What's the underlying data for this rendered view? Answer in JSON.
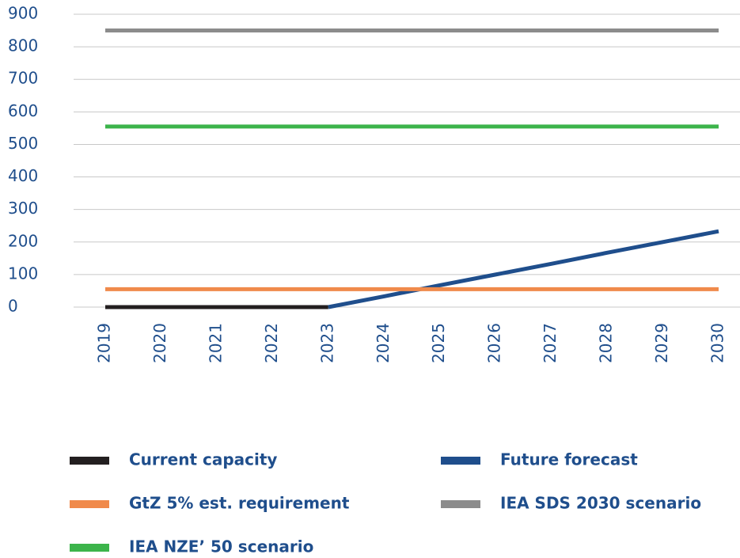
{
  "chart_data": {
    "type": "line",
    "categories": [
      "2019",
      "2020",
      "2021",
      "2022",
      "2023",
      "2024",
      "2025",
      "2026",
      "2027",
      "2028",
      "2029",
      "2030"
    ],
    "series": [
      {
        "name": "Current capacity",
        "color": "#231f20",
        "values": [
          0,
          0,
          0,
          0,
          0,
          null,
          null,
          null,
          null,
          null,
          null,
          null
        ]
      },
      {
        "name": "Future forecast",
        "color": "#1f4e8c",
        "values": [
          null,
          null,
          null,
          null,
          0,
          33,
          67,
          100,
          133,
          167,
          200,
          233
        ]
      },
      {
        "name": "GtZ 5% est. requirement",
        "color": "#f08a4b",
        "values": [
          55,
          55,
          55,
          55,
          55,
          55,
          55,
          55,
          55,
          55,
          55,
          55
        ]
      },
      {
        "name": "IEA SDS 2030 scenario",
        "color": "#8c8c8c",
        "values": [
          850,
          850,
          850,
          850,
          850,
          850,
          850,
          850,
          850,
          850,
          850,
          850
        ]
      },
      {
        "name": "IEA NZE’ 50 scenario",
        "color": "#3cb44b",
        "values": [
          555,
          555,
          555,
          555,
          555,
          555,
          555,
          555,
          555,
          555,
          555,
          555
        ]
      }
    ],
    "ylim": [
      0,
      900
    ],
    "yticks": [
      0,
      100,
      200,
      300,
      400,
      500,
      600,
      700,
      800,
      900
    ],
    "grid": true
  }
}
